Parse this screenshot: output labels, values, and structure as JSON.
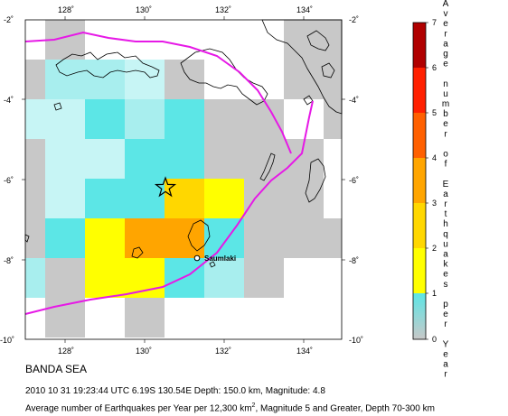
{
  "map": {
    "lon_ticks": [
      "128˚",
      "130˚",
      "132˚",
      "134˚"
    ],
    "lat_ticks": [
      "-2˚",
      "-4˚",
      "-6˚",
      "-8˚",
      "-10˚"
    ],
    "city": "Saumlaki"
  },
  "colorbar": {
    "title_chars": [
      "A",
      "v",
      "e",
      "r",
      "a",
      "g",
      "e",
      "",
      "n",
      "u",
      "m",
      "b",
      "e",
      "r",
      "",
      "o",
      "f",
      "",
      "E",
      "a",
      "r",
      "t",
      "h",
      "q",
      "u",
      "a",
      "k",
      "e",
      "s",
      "",
      "p",
      "e",
      "r",
      "",
      "Y",
      "e",
      "a",
      "r"
    ],
    "tick_labels": [
      "0",
      "1",
      "2",
      "3",
      "4",
      "5",
      "6",
      "7"
    ],
    "colors": {
      "0-1": "#c8c8c8",
      "1-2": "#ffff00",
      "2-3": "#ffd700",
      "3-4": "#ffa500",
      "4-5": "#ff6000",
      "5-6": "#ff2000",
      "6-7": "#b00000",
      "low_cyan": "#5ce6e6"
    }
  },
  "caption": {
    "region": "BANDA SEA",
    "event": "2010 10 31 19:23:44 UTC 6.19S 130.54E Depth: 150.0 km, Magnitude: 4.8",
    "legend_prefix": "Average number of Earthquakes per Year per 12,300 km",
    "legend_sup": "2",
    "legend_suffix": ", Magnitude 5 and Greater, Depth 70-300 km"
  }
}
